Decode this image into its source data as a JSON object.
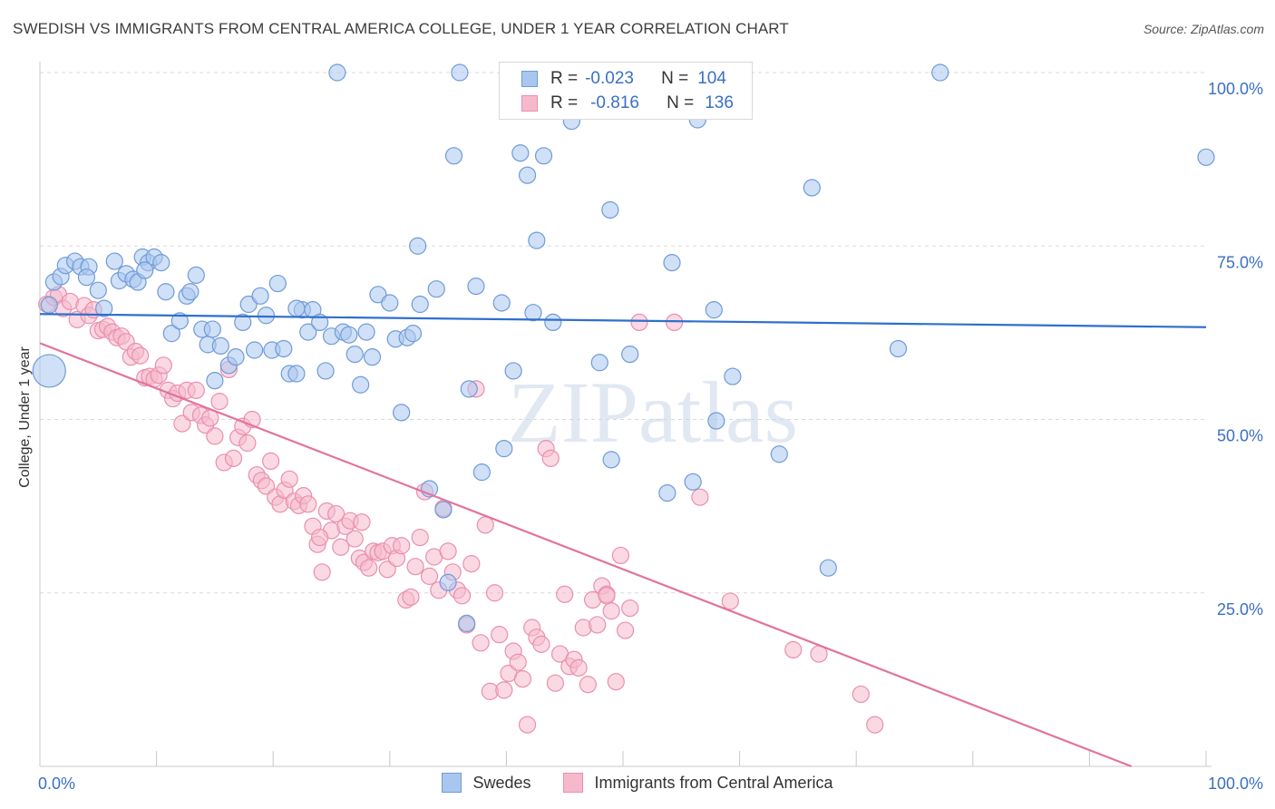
{
  "title": "SWEDISH VS IMMIGRANTS FROM CENTRAL AMERICA COLLEGE, UNDER 1 YEAR CORRELATION CHART",
  "source": "Source: ZipAtlas.com",
  "watermark": "ZIPatlas",
  "legend": {
    "r_label": "R =",
    "n_label": "N =",
    "rows": [
      {
        "r": "-0.023",
        "n": "104"
      },
      {
        "r": "-0.816",
        "n": "136"
      }
    ]
  },
  "bottom_legend": [
    "Swedes",
    "Immigrants from Central America"
  ],
  "colors": {
    "blue_fill": "#a9c6ee",
    "blue_edge": "#6f9bd8",
    "blue_line": "#2f6fce",
    "pink_fill": "#f6b9cc",
    "pink_edge": "#ea8fae",
    "pink_line": "#e2739d",
    "tick_label": "#3b6fc4",
    "grid": "#d9d9d9"
  },
  "chart_data": {
    "type": "scatter",
    "title": "SWEDISH VS IMMIGRANTS FROM CENTRAL AMERICA COLLEGE, UNDER 1 YEAR CORRELATION CHART",
    "xlabel": "",
    "ylabel": "College, Under 1 year",
    "xlim": [
      0,
      100
    ],
    "ylim": [
      0,
      100
    ],
    "x_tick_labels": [
      "0.0%",
      "100.0%"
    ],
    "y_tick_values": [
      25,
      50,
      75,
      100
    ],
    "y_tick_labels": [
      "25.0%",
      "50.0%",
      "75.0%",
      "100.0%"
    ],
    "grid": true,
    "legend_position": "top-center",
    "series": [
      {
        "name": "Swedes",
        "r": -0.023,
        "n": 104,
        "trend": {
          "x": [
            0,
            100
          ],
          "y": [
            65.2,
            63.3
          ]
        },
        "points": [
          [
            0.8,
            66.5
          ],
          [
            0.8,
            57.0
          ],
          [
            1.2,
            69.8
          ],
          [
            1.8,
            70.6
          ],
          [
            2.2,
            72.2
          ],
          [
            3.0,
            72.8
          ],
          [
            3.5,
            72.0
          ],
          [
            4.2,
            72.0
          ],
          [
            5.0,
            68.6
          ],
          [
            5.5,
            66.0
          ],
          [
            6.4,
            72.8
          ],
          [
            6.8,
            70.0
          ],
          [
            7.4,
            71.0
          ],
          [
            8.0,
            70.2
          ],
          [
            8.4,
            69.8
          ],
          [
            8.8,
            73.4
          ],
          [
            9.3,
            72.6
          ],
          [
            9.8,
            73.4
          ],
          [
            10.4,
            72.6
          ],
          [
            10.8,
            68.4
          ],
          [
            11.3,
            62.4
          ],
          [
            12.0,
            64.2
          ],
          [
            12.6,
            67.8
          ],
          [
            12.9,
            68.4
          ],
          [
            13.4,
            70.8
          ],
          [
            13.9,
            63.0
          ],
          [
            14.4,
            60.8
          ],
          [
            15.0,
            55.6
          ],
          [
            15.5,
            60.6
          ],
          [
            16.2,
            57.8
          ],
          [
            16.8,
            59.0
          ],
          [
            17.4,
            64.0
          ],
          [
            17.9,
            66.6
          ],
          [
            18.4,
            60.0
          ],
          [
            18.9,
            67.8
          ],
          [
            19.4,
            65.0
          ],
          [
            19.9,
            60.0
          ],
          [
            20.4,
            69.6
          ],
          [
            20.9,
            60.2
          ],
          [
            21.4,
            56.6
          ],
          [
            22.0,
            56.6
          ],
          [
            22.5,
            65.8
          ],
          [
            23.0,
            62.6
          ],
          [
            23.4,
            65.8
          ],
          [
            24.0,
            64.0
          ],
          [
            24.5,
            57.0
          ],
          [
            25.0,
            62.0
          ],
          [
            25.5,
            100.0
          ],
          [
            26.0,
            62.6
          ],
          [
            26.5,
            62.2
          ],
          [
            27.0,
            59.4
          ],
          [
            27.5,
            55.0
          ],
          [
            28.0,
            62.6
          ],
          [
            28.5,
            59.0
          ],
          [
            29.0,
            68.0
          ],
          [
            30.0,
            66.8
          ],
          [
            30.5,
            61.6
          ],
          [
            31.0,
            51.0
          ],
          [
            31.5,
            61.8
          ],
          [
            32.0,
            62.4
          ],
          [
            32.4,
            75.0
          ],
          [
            32.6,
            66.6
          ],
          [
            33.4,
            40.0
          ],
          [
            34.0,
            68.8
          ],
          [
            34.6,
            37.0
          ],
          [
            35.0,
            26.5
          ],
          [
            35.5,
            88.0
          ],
          [
            36.0,
            100.0
          ],
          [
            36.6,
            20.6
          ],
          [
            36.8,
            54.4
          ],
          [
            37.4,
            69.2
          ],
          [
            37.9,
            42.4
          ],
          [
            39.6,
            66.8
          ],
          [
            39.8,
            45.8
          ],
          [
            40.6,
            57.0
          ],
          [
            41.2,
            88.4
          ],
          [
            41.8,
            85.2
          ],
          [
            42.3,
            65.4
          ],
          [
            42.6,
            75.8
          ],
          [
            43.2,
            88.0
          ],
          [
            44.0,
            64.0
          ],
          [
            45.6,
            93.0
          ],
          [
            45.8,
            100.0
          ],
          [
            48.0,
            58.2
          ],
          [
            48.9,
            80.2
          ],
          [
            49.0,
            44.2
          ],
          [
            50.6,
            59.4
          ],
          [
            53.8,
            39.4
          ],
          [
            54.2,
            72.6
          ],
          [
            56.0,
            41.0
          ],
          [
            56.4,
            93.2
          ],
          [
            57.8,
            65.8
          ],
          [
            58.0,
            49.8
          ],
          [
            59.4,
            56.2
          ],
          [
            63.4,
            45.0
          ],
          [
            66.2,
            83.4
          ],
          [
            67.6,
            28.6
          ],
          [
            73.6,
            60.2
          ],
          [
            77.2,
            100.0
          ],
          [
            100.0,
            87.8
          ],
          [
            4.0,
            70.5
          ],
          [
            9.0,
            71.5
          ],
          [
            22.0,
            66.0
          ],
          [
            14.8,
            63.0
          ]
        ]
      },
      {
        "name": "Immigrants from Central America",
        "r": -0.816,
        "n": 136,
        "trend": {
          "x": [
            0,
            93.6
          ],
          "y": [
            61.0,
            0.0
          ]
        },
        "points": [
          [
            0.6,
            66.6
          ],
          [
            1.2,
            67.6
          ],
          [
            1.6,
            68.0
          ],
          [
            2.0,
            66.0
          ],
          [
            2.6,
            67.0
          ],
          [
            3.2,
            64.4
          ],
          [
            3.8,
            66.4
          ],
          [
            4.2,
            65.0
          ],
          [
            4.6,
            65.8
          ],
          [
            5.0,
            62.8
          ],
          [
            5.4,
            63.0
          ],
          [
            5.8,
            63.4
          ],
          [
            6.2,
            62.6
          ],
          [
            6.6,
            61.8
          ],
          [
            7.0,
            62.0
          ],
          [
            7.4,
            61.2
          ],
          [
            7.8,
            59.0
          ],
          [
            8.2,
            59.8
          ],
          [
            8.6,
            59.2
          ],
          [
            9.0,
            56.0
          ],
          [
            9.4,
            56.2
          ],
          [
            9.8,
            55.8
          ],
          [
            10.2,
            56.4
          ],
          [
            10.6,
            57.8
          ],
          [
            11.0,
            54.2
          ],
          [
            11.4,
            53.0
          ],
          [
            11.8,
            53.8
          ],
          [
            12.2,
            49.4
          ],
          [
            12.6,
            54.2
          ],
          [
            13.0,
            51.0
          ],
          [
            13.4,
            54.2
          ],
          [
            13.8,
            50.6
          ],
          [
            14.2,
            49.2
          ],
          [
            14.6,
            50.2
          ],
          [
            15.0,
            47.6
          ],
          [
            15.4,
            52.6
          ],
          [
            15.8,
            43.8
          ],
          [
            16.2,
            57.2
          ],
          [
            16.6,
            44.4
          ],
          [
            17.0,
            47.4
          ],
          [
            17.4,
            49.0
          ],
          [
            17.8,
            46.6
          ],
          [
            18.2,
            50.0
          ],
          [
            18.6,
            42.0
          ],
          [
            19.0,
            41.2
          ],
          [
            19.4,
            40.4
          ],
          [
            19.8,
            44.0
          ],
          [
            20.2,
            38.8
          ],
          [
            20.6,
            37.8
          ],
          [
            21.0,
            39.8
          ],
          [
            21.4,
            41.4
          ],
          [
            21.8,
            38.2
          ],
          [
            22.2,
            37.6
          ],
          [
            22.6,
            39.0
          ],
          [
            23.0,
            37.8
          ],
          [
            23.4,
            34.6
          ],
          [
            23.8,
            32.0
          ],
          [
            24.2,
            28.0
          ],
          [
            24.6,
            36.8
          ],
          [
            25.0,
            34.0
          ],
          [
            25.4,
            36.4
          ],
          [
            25.8,
            31.6
          ],
          [
            26.2,
            34.6
          ],
          [
            26.6,
            35.4
          ],
          [
            27.0,
            32.8
          ],
          [
            27.4,
            30.0
          ],
          [
            27.8,
            29.4
          ],
          [
            28.2,
            28.6
          ],
          [
            28.6,
            31.0
          ],
          [
            29.0,
            30.8
          ],
          [
            29.4,
            31.0
          ],
          [
            29.8,
            28.4
          ],
          [
            30.2,
            31.8
          ],
          [
            30.6,
            30.0
          ],
          [
            31.0,
            31.8
          ],
          [
            31.4,
            24.0
          ],
          [
            31.8,
            24.4
          ],
          [
            32.2,
            28.8
          ],
          [
            32.6,
            33.0
          ],
          [
            33.0,
            39.6
          ],
          [
            33.4,
            27.4
          ],
          [
            33.8,
            30.2
          ],
          [
            34.2,
            25.4
          ],
          [
            34.6,
            37.2
          ],
          [
            35.0,
            31.0
          ],
          [
            35.4,
            28.0
          ],
          [
            35.8,
            25.4
          ],
          [
            36.2,
            24.6
          ],
          [
            36.6,
            20.4
          ],
          [
            37.0,
            29.2
          ],
          [
            37.4,
            54.4
          ],
          [
            37.8,
            17.8
          ],
          [
            38.2,
            34.8
          ],
          [
            38.6,
            10.8
          ],
          [
            39.0,
            25.0
          ],
          [
            39.4,
            19.0
          ],
          [
            39.8,
            11.0
          ],
          [
            40.2,
            13.4
          ],
          [
            40.6,
            16.6
          ],
          [
            41.0,
            15.0
          ],
          [
            41.4,
            12.6
          ],
          [
            41.8,
            6.0
          ],
          [
            42.2,
            20.0
          ],
          [
            42.6,
            18.6
          ],
          [
            43.0,
            17.6
          ],
          [
            43.4,
            45.8
          ],
          [
            43.8,
            44.4
          ],
          [
            44.2,
            12.0
          ],
          [
            44.6,
            16.2
          ],
          [
            45.0,
            24.8
          ],
          [
            45.4,
            14.4
          ],
          [
            45.8,
            15.4
          ],
          [
            46.2,
            14.2
          ],
          [
            46.6,
            20.0
          ],
          [
            47.0,
            11.8
          ],
          [
            47.4,
            24.0
          ],
          [
            47.8,
            20.4
          ],
          [
            48.2,
            26.0
          ],
          [
            48.6,
            24.8
          ],
          [
            49.0,
            22.4
          ],
          [
            49.4,
            12.2
          ],
          [
            49.8,
            30.4
          ],
          [
            50.2,
            19.6
          ],
          [
            50.6,
            22.8
          ],
          [
            51.4,
            64.0
          ],
          [
            54.4,
            64.0
          ],
          [
            56.6,
            38.8
          ],
          [
            59.2,
            23.8
          ],
          [
            64.6,
            16.8
          ],
          [
            66.8,
            16.2
          ],
          [
            70.4,
            10.4
          ],
          [
            71.6,
            6.0
          ],
          [
            48.6,
            24.6
          ],
          [
            27.6,
            35.2
          ],
          [
            24.0,
            33.0
          ]
        ]
      }
    ]
  }
}
